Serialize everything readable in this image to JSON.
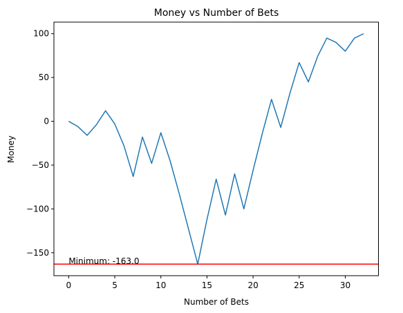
{
  "chart_data": {
    "type": "line",
    "title": "Money vs Number of Bets",
    "xlabel": "Number of Bets",
    "ylabel": "Money",
    "xlim": [
      -1.6,
      33.6
    ],
    "ylim": [
      -176.2,
      113.2
    ],
    "xticks": [
      0,
      5,
      10,
      15,
      20,
      25,
      30
    ],
    "yticks": [
      -150,
      -100,
      -50,
      0,
      50,
      100
    ],
    "grid": false,
    "series": [
      {
        "color": "#1f77b4",
        "x": [
          0,
          1,
          2,
          3,
          4,
          5,
          6,
          7,
          8,
          9,
          10,
          11,
          12,
          13,
          14,
          15,
          16,
          17,
          18,
          19,
          20,
          21,
          22,
          23,
          24,
          25,
          26,
          27,
          28,
          29,
          30,
          31,
          32
        ],
        "y": [
          0,
          -6,
          -16,
          -4,
          12,
          -3,
          -28,
          -63,
          -18,
          -48,
          -13,
          -45,
          -83,
          -123,
          -163,
          -112,
          -66,
          -107,
          -60,
          -100,
          -56,
          -14,
          25,
          -7,
          32,
          67,
          45,
          74,
          95,
          90,
          80,
          95,
          100
        ]
      }
    ],
    "hline": {
      "y": -163.0,
      "color": "#ff0000"
    },
    "annotation": {
      "text": "Minimum: -163.0",
      "x": 0,
      "y": -163.0
    }
  }
}
